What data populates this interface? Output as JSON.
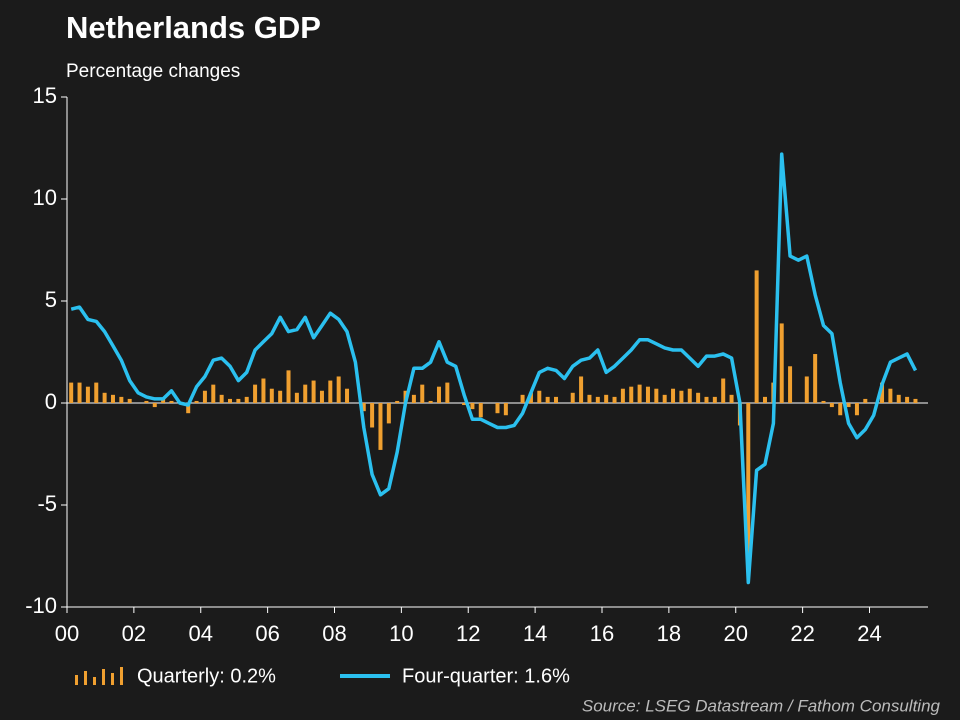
{
  "chart_data": {
    "type": "bar-line",
    "title": "Netherlands GDP",
    "subtitle": "Percentage changes",
    "source": "Source: LSEG Datastream / Fathom Consulting",
    "x": [
      2000,
      2000.25,
      2000.5,
      2000.75,
      2001,
      2001.25,
      2001.5,
      2001.75,
      2002,
      2002.25,
      2002.5,
      2002.75,
      2003,
      2003.25,
      2003.5,
      2003.75,
      2004,
      2004.25,
      2004.5,
      2004.75,
      2005,
      2005.25,
      2005.5,
      2005.75,
      2006,
      2006.25,
      2006.5,
      2006.75,
      2007,
      2007.25,
      2007.5,
      2007.75,
      2008,
      2008.25,
      2008.5,
      2008.75,
      2009,
      2009.25,
      2009.5,
      2009.75,
      2010,
      2010.25,
      2010.5,
      2010.75,
      2011,
      2011.25,
      2011.5,
      2011.75,
      2012,
      2012.25,
      2012.5,
      2012.75,
      2013,
      2013.25,
      2013.5,
      2013.75,
      2014,
      2014.25,
      2014.5,
      2014.75,
      2015,
      2015.25,
      2015.5,
      2015.75,
      2016,
      2016.25,
      2016.5,
      2016.75,
      2017,
      2017.25,
      2017.5,
      2017.75,
      2018,
      2018.25,
      2018.5,
      2018.75,
      2019,
      2019.25,
      2019.5,
      2019.75,
      2020,
      2020.25,
      2020.5,
      2020.75,
      2021,
      2021.25,
      2021.5,
      2021.75,
      2022,
      2022.25,
      2022.5,
      2022.75,
      2023,
      2023.25,
      2023.5,
      2023.75,
      2024,
      2024.25,
      2024.5,
      2024.75,
      2025,
      2025.25
    ],
    "series": [
      {
        "name": "Quarterly: 0.2%",
        "type": "bar",
        "color": "#f0a030",
        "values": [
          1.0,
          1.0,
          0.8,
          1.0,
          0.5,
          0.4,
          0.3,
          0.2,
          0.0,
          0.1,
          -0.2,
          0.2,
          0.1,
          0.0,
          -0.5,
          0.1,
          0.6,
          0.9,
          0.4,
          0.2,
          0.2,
          0.3,
          0.9,
          1.2,
          0.7,
          0.6,
          1.6,
          0.5,
          0.9,
          1.1,
          0.6,
          1.1,
          1.3,
          0.7,
          0.0,
          -0.4,
          -1.2,
          -2.3,
          -1.0,
          0.1,
          0.6,
          0.4,
          0.9,
          0.1,
          0.8,
          1.0,
          0.0,
          -0.1,
          -0.3,
          -0.7,
          0.0,
          -0.5,
          -0.6,
          0.0,
          0.4,
          0.5,
          0.6,
          0.3,
          0.3,
          0.0,
          0.5,
          1.3,
          0.4,
          0.3,
          0.4,
          0.3,
          0.7,
          0.8,
          0.9,
          0.8,
          0.7,
          0.4,
          0.7,
          0.6,
          0.7,
          0.5,
          0.3,
          0.3,
          1.2,
          0.4,
          -1.1,
          -8.0,
          6.5,
          0.3,
          1.0,
          3.9,
          1.8,
          0.0,
          1.3,
          2.4,
          0.1,
          -0.2,
          -0.6,
          -0.2,
          -0.6,
          0.2,
          0.0,
          1.0,
          0.7,
          0.4,
          0.3,
          0.2
        ]
      },
      {
        "name": "Four-quarter: 1.6%",
        "type": "line",
        "color": "#2bc0ef",
        "values": [
          4.6,
          4.7,
          4.1,
          4.0,
          3.5,
          2.8,
          2.1,
          1.1,
          0.5,
          0.3,
          0.2,
          0.2,
          0.6,
          0.0,
          -0.1,
          0.8,
          1.3,
          2.1,
          2.2,
          1.8,
          1.1,
          1.5,
          2.6,
          3.0,
          3.4,
          4.2,
          3.5,
          3.6,
          4.2,
          3.2,
          3.8,
          4.4,
          4.1,
          3.5,
          2.0,
          -1.2,
          -3.5,
          -4.5,
          -4.2,
          -2.4,
          0.0,
          1.7,
          1.7,
          2.0,
          3.0,
          2.0,
          1.8,
          0.4,
          -0.8,
          -0.8,
          -1.0,
          -1.2,
          -1.2,
          -1.1,
          -0.5,
          0.5,
          1.5,
          1.7,
          1.6,
          1.2,
          1.8,
          2.1,
          2.2,
          2.6,
          1.5,
          1.8,
          2.2,
          2.6,
          3.1,
          3.1,
          2.9,
          2.7,
          2.6,
          2.6,
          2.2,
          1.8,
          2.3,
          2.3,
          2.4,
          2.2,
          0.0,
          -8.8,
          -3.3,
          -3.0,
          -1.0,
          12.2,
          7.2,
          7.0,
          7.2,
          5.3,
          3.8,
          3.4,
          1.0,
          -1.0,
          -1.7,
          -1.3,
          -0.6,
          0.9,
          2.0,
          2.2,
          2.4,
          1.6
        ]
      }
    ],
    "xlim": [
      2000,
      2025.75
    ],
    "xticks": [
      {
        "value": 2000,
        "label": "00"
      },
      {
        "value": 2002,
        "label": "02"
      },
      {
        "value": 2004,
        "label": "04"
      },
      {
        "value": 2006,
        "label": "06"
      },
      {
        "value": 2008,
        "label": "08"
      },
      {
        "value": 2010,
        "label": "10"
      },
      {
        "value": 2012,
        "label": "12"
      },
      {
        "value": 2014,
        "label": "14"
      },
      {
        "value": 2016,
        "label": "16"
      },
      {
        "value": 2018,
        "label": "18"
      },
      {
        "value": 2020,
        "label": "20"
      },
      {
        "value": 2022,
        "label": "22"
      },
      {
        "value": 2024,
        "label": "24"
      }
    ],
    "ylim": [
      -10,
      15
    ],
    "yticks": [
      -10,
      -5,
      0,
      5,
      10,
      15
    ]
  }
}
